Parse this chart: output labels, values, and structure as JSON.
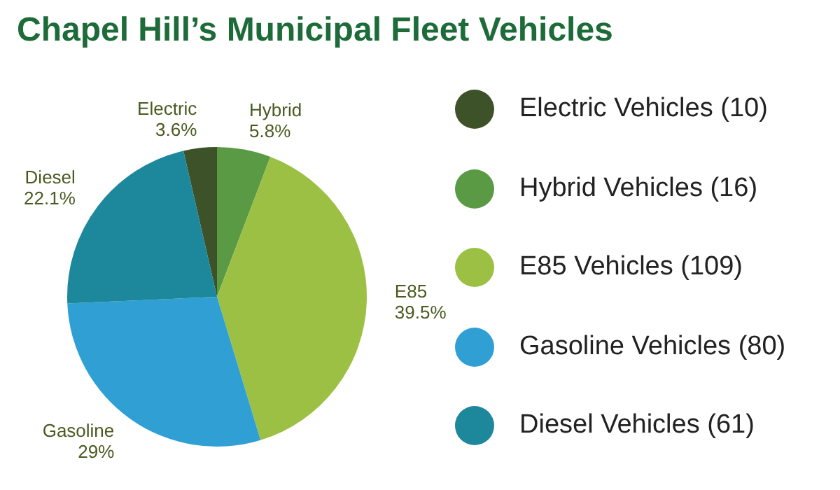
{
  "chart_data": {
    "type": "pie",
    "title": "Chapel Hill’s Municipal Fleet Vehicles",
    "categories": [
      "Electric Vehicles (10)",
      "Hybrid Vehicles (16)",
      "E85 Vehicles (109)",
      "Gasoline Vehicles (80)",
      "Diesel Vehicles (61)"
    ],
    "values": [
      3.6,
      5.8,
      39.5,
      29,
      22.1
    ],
    "colors": [
      "#3d5229",
      "#5a9a45",
      "#9cc043",
      "#2f9fd4",
      "#1d879b"
    ],
    "value_labels": [
      "Electric\n3.6%",
      "Hybrid\n5.8%",
      "E85\n39.5%",
      "Gasoline\n29%",
      "Diesel\n22.1%"
    ],
    "legend": "right"
  }
}
